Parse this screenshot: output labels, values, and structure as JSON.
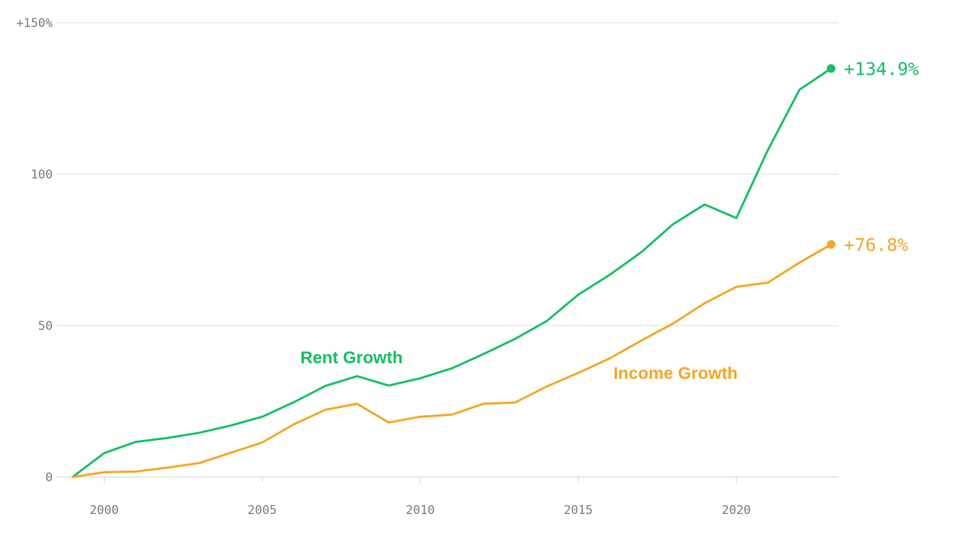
{
  "chart_data": {
    "type": "line",
    "title": "",
    "xlabel": "",
    "ylabel": "",
    "xlim": [
      1999,
      2023
    ],
    "ylim": [
      0,
      150
    ],
    "x_ticks": [
      2000,
      2005,
      2010,
      2015,
      2020
    ],
    "x_tick_labels": [
      "2000",
      "2005",
      "2010",
      "2015",
      "2020"
    ],
    "y_ticks": [
      0,
      50,
      100,
      150
    ],
    "y_tick_labels": [
      "0",
      "50",
      "100",
      "+150%"
    ],
    "grid": true,
    "legend": "none",
    "x": [
      1999,
      2000,
      2001,
      2002,
      2003,
      2004,
      2005,
      2006,
      2007,
      2008,
      2009,
      2010,
      2011,
      2012,
      2013,
      2014,
      2015,
      2016,
      2017,
      2018,
      2019,
      2020,
      2021,
      2022,
      2023
    ],
    "series": [
      {
        "name": "Rent Growth",
        "color": "#13bf62",
        "end_label": "+134.9%",
        "values": [
          0,
          7.9,
          11.6,
          12.9,
          14.6,
          17.0,
          19.9,
          24.7,
          30.1,
          33.3,
          30.2,
          32.6,
          35.9,
          40.6,
          45.6,
          51.5,
          60.2,
          66.8,
          74.3,
          83.5,
          90.0,
          85.5,
          108.0,
          127.9,
          134.9
        ]
      },
      {
        "name": "Income Growth",
        "color": "#f5a623",
        "end_label": "+76.8%",
        "values": [
          0,
          1.6,
          1.8,
          3.1,
          4.6,
          8.0,
          11.4,
          17.4,
          22.2,
          24.2,
          18.0,
          19.9,
          20.6,
          24.2,
          24.6,
          29.9,
          34.4,
          39.2,
          45.1,
          50.7,
          57.4,
          62.8,
          64.2,
          70.8,
          76.8
        ]
      }
    ]
  }
}
